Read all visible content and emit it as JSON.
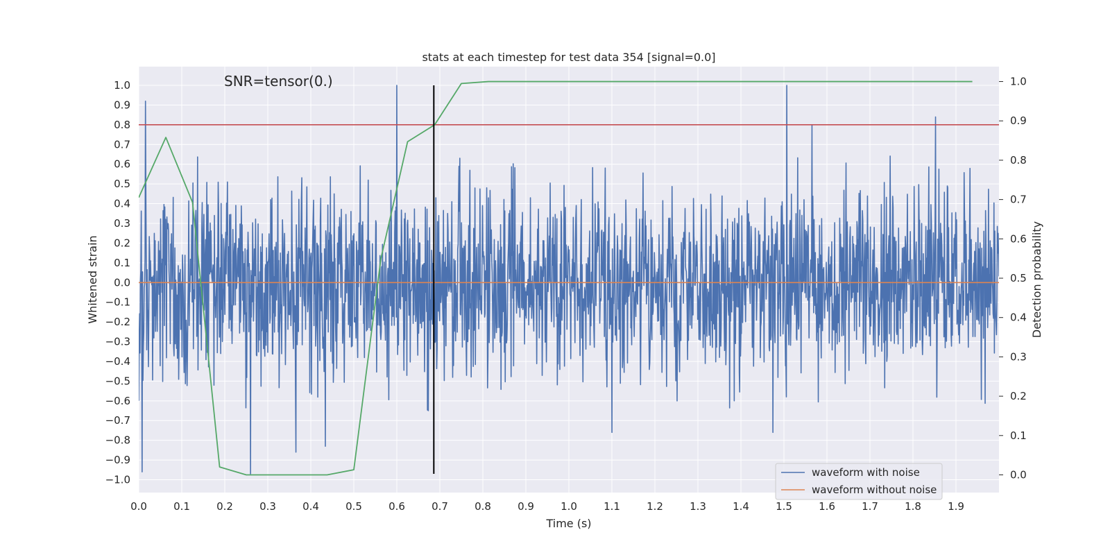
{
  "chart_data": {
    "type": "line",
    "title": "stats at each timestep for test data 354 [signal=0.0]",
    "annotation": "SNR=tensor(0.)",
    "xlabel": "Time (s)",
    "ylabel": "Whitened strain",
    "y2label": "Detection probability",
    "xlim": [
      0.0,
      2.0
    ],
    "ylim": [
      -1.065,
      1.095
    ],
    "y2lim": [
      -0.045,
      1.038
    ],
    "x_ticks": [
      "0.0",
      "0.1",
      "0.2",
      "0.3",
      "0.4",
      "0.5",
      "0.6",
      "0.7",
      "0.8",
      "0.9",
      "1.0",
      "1.1",
      "1.2",
      "1.3",
      "1.4",
      "1.5",
      "1.6",
      "1.7",
      "1.8",
      "1.9"
    ],
    "y_ticks": [
      "−1.0",
      "−0.9",
      "−0.8",
      "−0.7",
      "−0.6",
      "−0.5",
      "−0.4",
      "−0.3",
      "−0.2",
      "−0.1",
      "0.0",
      "0.1",
      "0.2",
      "0.3",
      "0.4",
      "0.5",
      "0.6",
      "0.7",
      "0.8",
      "0.9",
      "1.0"
    ],
    "y2_ticks": [
      "0.0",
      "0.1",
      "0.2",
      "0.3",
      "0.4",
      "0.5",
      "0.6",
      "0.7",
      "0.8",
      "0.9",
      "1.0"
    ],
    "grid": true,
    "legend_position": "lower-right",
    "colors": {
      "background": "#eaeaf2",
      "grid": "#ffffff",
      "noisy": "#4c72b0",
      "clean": "#dd8452",
      "probability": "#55a868",
      "threshold": "#c44e52",
      "marker": "#000000"
    },
    "series": [
      {
        "name": "waveform with noise",
        "axis": "left",
        "description_level": "noise",
        "amplitude_envelope": 0.65,
        "x_range": [
          0.0,
          2.0
        ],
        "highlight_peaks": [
          {
            "x": 0.016,
            "y": 0.92
          },
          {
            "x": 0.008,
            "y": -0.96
          },
          {
            "x": 0.6,
            "y": 1.0
          },
          {
            "x": 1.507,
            "y": 1.0
          },
          {
            "x": 1.852,
            "y": 0.84
          },
          {
            "x": 1.565,
            "y": 0.8
          },
          {
            "x": 0.26,
            "y": -0.97
          },
          {
            "x": 0.365,
            "y": -0.86
          },
          {
            "x": 0.434,
            "y": -0.83
          },
          {
            "x": 1.1,
            "y": -0.76
          },
          {
            "x": 1.474,
            "y": -0.76
          }
        ]
      },
      {
        "name": "waveform without noise",
        "axis": "left",
        "x": [
          0.0,
          2.0
        ],
        "y": [
          0.0,
          0.0
        ]
      },
      {
        "name": "",
        "axis": "right",
        "x": [
          0.0,
          0.063,
          0.125,
          0.188,
          0.25,
          0.313,
          0.375,
          0.438,
          0.5,
          0.563,
          0.625,
          0.688,
          0.75,
          0.813,
          0.875,
          1.938
        ],
        "y": [
          0.705,
          0.858,
          0.693,
          0.02,
          0.0,
          0.0,
          0.0,
          0.0,
          0.013,
          0.55,
          0.847,
          0.89,
          0.995,
          1.0,
          1.0,
          1.0
        ]
      }
    ],
    "threshold_line": {
      "axis": "left",
      "y": 0.8
    },
    "vertical_marker": {
      "x": 0.686,
      "y_from": -0.97,
      "y_to": 1.0
    }
  }
}
